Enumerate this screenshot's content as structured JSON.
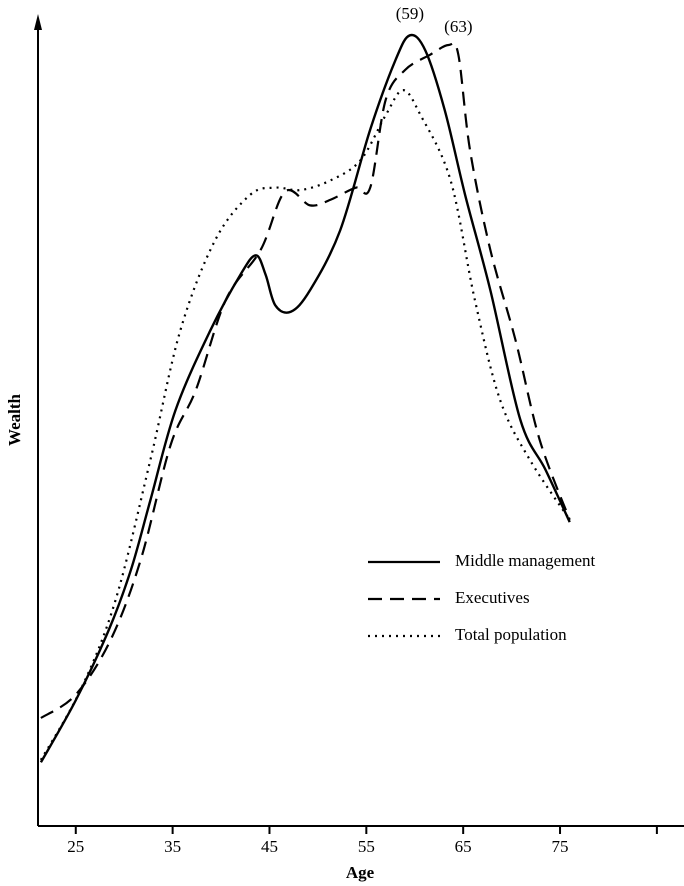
{
  "chart_data": {
    "type": "line",
    "x_label": "Age",
    "y_label": "Wealth",
    "xlim": [
      21.1,
      87.8
    ],
    "ylim": [
      0,
      100
    ],
    "xticks": [
      25,
      35,
      45,
      55,
      65,
      75,
      {
        "value": 85,
        "label": null
      }
    ],
    "legend": "lower right",
    "series": [
      {
        "name": "Middle management",
        "color": "#000000",
        "style": "solid",
        "x": [
          21.4,
          25,
          28.4,
          30.7,
          32.7,
          35.3,
          38.9,
          42,
          43.6,
          44.6,
          45.6,
          47.2,
          49.2,
          52.3,
          55.4,
          58,
          59.5,
          61.1,
          63.1,
          65.2,
          67.8,
          70.9,
          73.5,
          76
        ],
        "values": [
          7.9,
          15.6,
          24.3,
          31.8,
          40.4,
          51.6,
          61.5,
          68.4,
          70.8,
          68.4,
          64.6,
          63.8,
          66.5,
          73.9,
          86.4,
          95,
          98.1,
          96.2,
          88.8,
          78.3,
          66.5,
          50.4,
          44.2,
          37.7
        ]
      },
      {
        "name": "Executives",
        "color": "#000000",
        "style": "dashed",
        "x": [
          21.4,
          25,
          28.6,
          31.7,
          34.8,
          37.4,
          40.5,
          44.1,
          46.6,
          49.2,
          51.3,
          53.9,
          55.4,
          57,
          59,
          61.6,
          63.5,
          64.5,
          65.7,
          67.8,
          70.4,
          72.9,
          76
        ],
        "values": [
          13.4,
          16.3,
          23.1,
          33,
          47.3,
          54.1,
          65.3,
          71.5,
          78.7,
          77,
          77.7,
          79.2,
          79.2,
          90.1,
          93.8,
          95.7,
          96.9,
          95.7,
          83.9,
          71.5,
          60.3,
          47.9,
          38
        ]
      },
      {
        "name": "Total population",
        "color": "#000000",
        "style": "dotted",
        "x": [
          21.4,
          25.5,
          29.1,
          32.7,
          35.8,
          39.4,
          43,
          45.6,
          48.2,
          51.3,
          54.4,
          57,
          58.8,
          60.6,
          63.7,
          66.2,
          68.8,
          71.9,
          76
        ],
        "values": [
          8.2,
          16.9,
          28,
          45.4,
          61.5,
          72.7,
          78.3,
          79.2,
          78.9,
          80.1,
          82.6,
          88.2,
          91.3,
          88.2,
          80.1,
          65.3,
          52.9,
          45.4,
          38
        ]
      }
    ],
    "annotations": [
      {
        "text": "(59)",
        "x": 59.5,
        "y": 100.6
      },
      {
        "text": "(63)",
        "x": 64.5,
        "y": 99
      }
    ]
  }
}
